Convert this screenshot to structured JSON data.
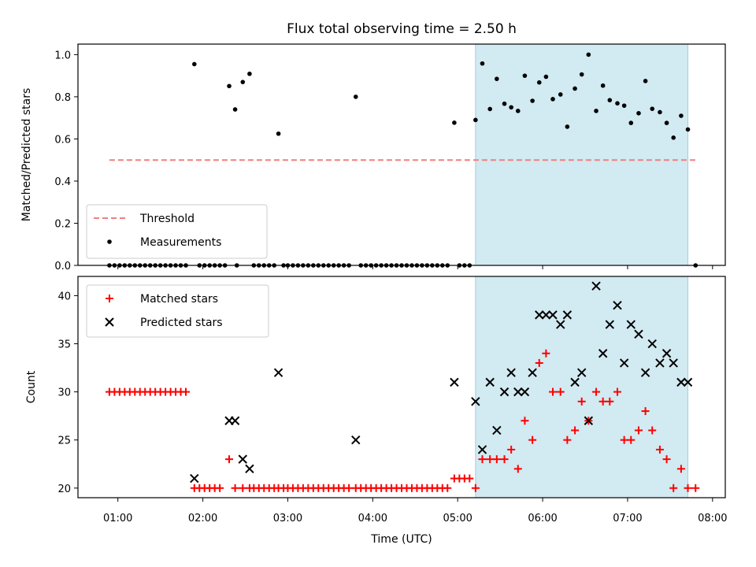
{
  "chart_data": {
    "type": "scatter",
    "title": "Flux total observing time = 2.50 h",
    "xlabel": "Time (UTC)",
    "x_unit": "hours UTC",
    "xlim": [
      0.53,
      8.15
    ],
    "xticks": [
      {
        "value": 1,
        "label": "01:00"
      },
      {
        "value": 2,
        "label": "02:00"
      },
      {
        "value": 3,
        "label": "03:00"
      },
      {
        "value": 4,
        "label": "04:00"
      },
      {
        "value": 5,
        "label": "05:00"
      },
      {
        "value": 6,
        "label": "06:00"
      },
      {
        "value": 7,
        "label": "07:00"
      },
      {
        "value": 8,
        "label": "08:00"
      }
    ],
    "shaded_interval": {
      "start": 5.21,
      "end": 7.71,
      "color": "#add8e6"
    },
    "top": {
      "ylabel": "Matched/Predicted stars",
      "ylim": [
        0,
        1.05
      ],
      "yticks": [
        "0.0",
        "0.2",
        "0.4",
        "0.6",
        "0.8",
        "1.0"
      ],
      "threshold": {
        "name": "Threshold",
        "value": 0.5,
        "x_start": 0.9,
        "x_end": 7.8,
        "color": "#f08080"
      },
      "measurements": {
        "name": "Measurements",
        "color": "#000000",
        "x": [
          0.9,
          0.96,
          1.02,
          1.08,
          1.14,
          1.2,
          1.26,
          1.32,
          1.38,
          1.44,
          1.5,
          1.56,
          1.62,
          1.68,
          1.74,
          1.8,
          1.9,
          1.96,
          2.02,
          2.08,
          2.14,
          2.2,
          2.26,
          2.31,
          2.38,
          2.4,
          2.47,
          2.55,
          2.6,
          2.66,
          2.72,
          2.78,
          2.84,
          2.89,
          2.95,
          3.0,
          3.06,
          3.12,
          3.18,
          3.24,
          3.3,
          3.36,
          3.42,
          3.48,
          3.54,
          3.6,
          3.66,
          3.72,
          3.8,
          3.86,
          3.92,
          3.98,
          4.04,
          4.1,
          4.16,
          4.22,
          4.28,
          4.34,
          4.4,
          4.46,
          4.52,
          4.58,
          4.64,
          4.7,
          4.76,
          4.82,
          4.88,
          4.96,
          5.02,
          5.08,
          5.14,
          5.21,
          5.29,
          5.38,
          5.46,
          5.55,
          5.63,
          5.71,
          5.79,
          5.88,
          5.96,
          6.04,
          6.12,
          6.21,
          6.29,
          6.38,
          6.46,
          6.54,
          6.63,
          6.71,
          6.79,
          6.88,
          6.96,
          7.04,
          7.13,
          7.21,
          7.29,
          7.38,
          7.46,
          7.54,
          7.63,
          7.71,
          7.8
        ],
        "y": [
          0,
          0,
          0,
          0,
          0,
          0,
          0,
          0,
          0,
          0,
          0,
          0,
          0,
          0,
          0,
          0,
          0.955,
          0,
          0,
          0,
          0,
          0,
          0,
          0.851,
          0.74,
          0,
          0.87,
          0.909,
          0,
          0,
          0,
          0,
          0,
          0.625,
          0,
          0,
          0,
          0,
          0,
          0,
          0,
          0,
          0,
          0,
          0,
          0,
          0,
          0,
          0.8,
          0,
          0,
          0,
          0,
          0,
          0,
          0,
          0,
          0,
          0,
          0,
          0,
          0,
          0,
          0,
          0,
          0,
          0,
          0.677,
          0,
          0,
          0,
          0.69,
          0.958,
          0.742,
          0.885,
          0.767,
          0.75,
          0.733,
          0.9,
          0.781,
          0.868,
          0.895,
          0.789,
          0.811,
          0.658,
          0.839,
          0.906,
          1.0,
          0.733,
          0.853,
          0.784,
          0.769,
          0.758,
          0.676,
          0.722,
          0.875,
          0.743,
          0.727,
          0.676,
          0.606,
          0.71,
          0.645,
          0
        ]
      }
    },
    "bottom": {
      "ylabel": "Count",
      "ylim": [
        19.0,
        42.0
      ],
      "yticks": [
        "20",
        "25",
        "30",
        "35",
        "40"
      ],
      "series": [
        {
          "name": "Matched stars",
          "marker": "+",
          "color": "#ff0000",
          "x": [
            0.9,
            0.96,
            1.02,
            1.08,
            1.14,
            1.2,
            1.26,
            1.32,
            1.38,
            1.44,
            1.5,
            1.56,
            1.62,
            1.68,
            1.74,
            1.8,
            1.9,
            1.96,
            2.02,
            2.08,
            2.14,
            2.2,
            2.31,
            2.38,
            2.47,
            2.55,
            2.6,
            2.66,
            2.72,
            2.78,
            2.84,
            2.89,
            2.95,
            3.0,
            3.06,
            3.12,
            3.18,
            3.24,
            3.3,
            3.36,
            3.42,
            3.48,
            3.54,
            3.6,
            3.66,
            3.72,
            3.8,
            3.86,
            3.92,
            3.98,
            4.04,
            4.1,
            4.16,
            4.22,
            4.28,
            4.34,
            4.4,
            4.46,
            4.52,
            4.58,
            4.64,
            4.7,
            4.76,
            4.82,
            4.88,
            4.96,
            5.02,
            5.08,
            5.14,
            5.21,
            5.29,
            5.38,
            5.46,
            5.55,
            5.63,
            5.71,
            5.79,
            5.88,
            5.96,
            6.04,
            6.12,
            6.21,
            6.29,
            6.38,
            6.46,
            6.54,
            6.63,
            6.71,
            6.79,
            6.88,
            6.96,
            7.04,
            7.13,
            7.21,
            7.29,
            7.38,
            7.46,
            7.54,
            7.63,
            7.71,
            7.8
          ],
          "y": [
            30,
            30,
            30,
            30,
            30,
            30,
            30,
            30,
            30,
            30,
            30,
            30,
            30,
            30,
            30,
            30,
            20,
            20,
            20,
            20,
            20,
            20,
            23,
            20,
            20,
            20,
            20,
            20,
            20,
            20,
            20,
            20,
            20,
            20,
            20,
            20,
            20,
            20,
            20,
            20,
            20,
            20,
            20,
            20,
            20,
            20,
            20,
            20,
            20,
            20,
            20,
            20,
            20,
            20,
            20,
            20,
            20,
            20,
            20,
            20,
            20,
            20,
            20,
            20,
            20,
            21,
            21,
            21,
            21,
            20,
            23,
            23,
            23,
            23,
            24,
            22,
            27,
            25,
            33,
            34,
            30,
            30,
            25,
            26,
            29,
            27,
            30,
            29,
            29,
            30,
            25,
            25,
            26,
            28,
            26,
            24,
            23,
            20,
            22,
            20,
            20
          ]
        },
        {
          "name": "Predicted stars",
          "marker": "x",
          "color": "#000000",
          "x": [
            1.9,
            2.31,
            2.38,
            2.47,
            2.55,
            2.89,
            3.8,
            4.96,
            5.21,
            5.29,
            5.38,
            5.46,
            5.55,
            5.63,
            5.71,
            5.79,
            5.88,
            5.96,
            6.04,
            6.12,
            6.21,
            6.29,
            6.38,
            6.46,
            6.54,
            6.63,
            6.71,
            6.79,
            6.88,
            6.96,
            7.04,
            7.13,
            7.21,
            7.29,
            7.38,
            7.46,
            7.54,
            7.63,
            7.71
          ],
          "y": [
            21,
            27,
            27,
            23,
            22,
            32,
            25,
            31,
            29,
            24,
            31,
            26,
            30,
            32,
            30,
            30,
            32,
            38,
            38,
            38,
            37,
            38,
            31,
            32,
            27,
            41,
            34,
            37,
            39,
            33,
            37,
            36,
            32,
            35,
            33,
            34,
            33,
            31,
            31
          ]
        }
      ]
    },
    "legends": {
      "top": [
        "Threshold",
        "Measurements"
      ],
      "bottom": [
        "Matched stars",
        "Predicted stars"
      ]
    }
  }
}
